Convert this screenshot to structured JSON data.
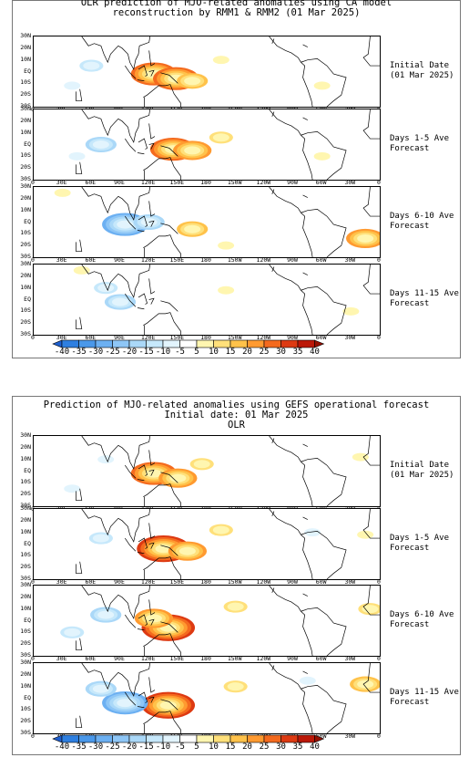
{
  "figures": [
    {
      "title_lines": [
        "OLR prediction of MJO-related anomalies using CA model",
        "reconstruction by RMM1 & RMM2 (01 Mar 2025)"
      ],
      "panels": [
        {
          "label": [
            "Initial Date",
            "(01 Mar 2025)"
          ]
        },
        {
          "label": [
            "Days 1-5 Ave",
            "Forecast"
          ]
        },
        {
          "label": [
            "Days 6-10 Ave",
            "Forecast"
          ]
        },
        {
          "label": [
            "Days 11-15 Ave",
            "Forecast"
          ]
        }
      ]
    },
    {
      "title_lines": [
        "Prediction of MJO-related anomalies using GEFS operational forecast",
        "Initial date: 01 Mar 2025",
        "OLR"
      ],
      "panels": [
        {
          "label": [
            "Initial Date",
            "(01 Mar 2025)"
          ]
        },
        {
          "label": [
            "Days 1-5 Ave",
            "Forecast"
          ]
        },
        {
          "label": [
            "Days 6-10 Ave",
            "Forecast"
          ]
        },
        {
          "label": [
            "Days 11-15 Ave",
            "Forecast"
          ]
        }
      ]
    }
  ],
  "chart_data": {
    "type": "heatmap",
    "variable": "OLR",
    "lat_ticks": [
      "30N",
      "20N",
      "10N",
      "EQ",
      "10S",
      "20S",
      "30S"
    ],
    "lon_ticks": [
      "0",
      "30E",
      "60E",
      "90E",
      "120E",
      "150E",
      "180",
      "150W",
      "120W",
      "90W",
      "60W",
      "30W",
      "0"
    ],
    "lat_range": [
      -30,
      30
    ],
    "lon_range": [
      0,
      360
    ],
    "colorbar": {
      "ticks": [
        "-40",
        "-35",
        "-30",
        "-25",
        "-20",
        "-15",
        "-10",
        "-5",
        "5",
        "10",
        "15",
        "20",
        "25",
        "30",
        "35",
        "40"
      ],
      "colors": [
        "#1e5fcf",
        "#2e7fe0",
        "#4a98ea",
        "#6cb0f2",
        "#8ec6f6",
        "#aad8f8",
        "#c6e8fb",
        "#e2f4fd",
        "#ffffff",
        "#fff6b0",
        "#ffe07a",
        "#ffc24a",
        "#ff9a30",
        "#f46a1e",
        "#dd3a12",
        "#bb1808",
        "#951000"
      ]
    },
    "panels": [
      {
        "figure": 1,
        "name": "Initial Date",
        "anomalies": [
          {
            "lon": 125,
            "lat": -2,
            "value": 25
          },
          {
            "lon": 148,
            "lat": -6,
            "value": 25
          },
          {
            "lon": 165,
            "lat": -8,
            "value": 15
          },
          {
            "lon": 60,
            "lat": 5,
            "value": -10
          },
          {
            "lon": 40,
            "lat": -12,
            "value": -5
          },
          {
            "lon": 300,
            "lat": -12,
            "value": 5
          },
          {
            "lon": 195,
            "lat": 10,
            "value": 5
          }
        ]
      },
      {
        "figure": 1,
        "name": "Days 1-5 Ave",
        "anomalies": [
          {
            "lon": 145,
            "lat": -4,
            "value": 25
          },
          {
            "lon": 165,
            "lat": -5,
            "value": 20
          },
          {
            "lon": 195,
            "lat": 6,
            "value": 10
          },
          {
            "lon": 70,
            "lat": 0,
            "value": -15
          },
          {
            "lon": 45,
            "lat": -10,
            "value": -5
          },
          {
            "lon": 300,
            "lat": -10,
            "value": 5
          }
        ]
      },
      {
        "figure": 1,
        "name": "Days 6-10 Ave",
        "anomalies": [
          {
            "lon": 95,
            "lat": -2,
            "value": -25
          },
          {
            "lon": 120,
            "lat": 0,
            "value": -15
          },
          {
            "lon": 165,
            "lat": -6,
            "value": 15
          },
          {
            "lon": 200,
            "lat": -20,
            "value": 5
          },
          {
            "lon": 345,
            "lat": -14,
            "value": 20
          },
          {
            "lon": 30,
            "lat": 25,
            "value": 5
          }
        ]
      },
      {
        "figure": 1,
        "name": "Days 11-15 Ave",
        "anomalies": [
          {
            "lon": 90,
            "lat": -2,
            "value": -15
          },
          {
            "lon": 75,
            "lat": 10,
            "value": -10
          },
          {
            "lon": 200,
            "lat": 8,
            "value": 5
          },
          {
            "lon": 330,
            "lat": -10,
            "value": 5
          },
          {
            "lon": 50,
            "lat": 25,
            "value": 5
          }
        ]
      },
      {
        "figure": 2,
        "name": "Initial Date",
        "anomalies": [
          {
            "lon": 125,
            "lat": -2,
            "value": 25
          },
          {
            "lon": 150,
            "lat": -6,
            "value": 20
          },
          {
            "lon": 175,
            "lat": 6,
            "value": 10
          },
          {
            "lon": 75,
            "lat": 10,
            "value": -5
          },
          {
            "lon": 40,
            "lat": -15,
            "value": -5
          },
          {
            "lon": 340,
            "lat": 12,
            "value": 5
          }
        ]
      },
      {
        "figure": 2,
        "name": "Days 1-5 Ave",
        "anomalies": [
          {
            "lon": 135,
            "lat": -4,
            "value": 30
          },
          {
            "lon": 160,
            "lat": -6,
            "value": 20
          },
          {
            "lon": 195,
            "lat": 12,
            "value": 10
          },
          {
            "lon": 70,
            "lat": 5,
            "value": -10
          },
          {
            "lon": 290,
            "lat": 10,
            "value": -5
          },
          {
            "lon": 345,
            "lat": 8,
            "value": 5
          }
        ]
      },
      {
        "figure": 2,
        "name": "Days 6-10 Ave",
        "anomalies": [
          {
            "lon": 140,
            "lat": -6,
            "value": 30
          },
          {
            "lon": 125,
            "lat": 2,
            "value": 20
          },
          {
            "lon": 210,
            "lat": 12,
            "value": 10
          },
          {
            "lon": 75,
            "lat": 5,
            "value": -15
          },
          {
            "lon": 40,
            "lat": -10,
            "value": -10
          },
          {
            "lon": 350,
            "lat": 10,
            "value": 10
          }
        ]
      },
      {
        "figure": 2,
        "name": "Days 11-15 Ave",
        "anomalies": [
          {
            "lon": 140,
            "lat": -6,
            "value": 30
          },
          {
            "lon": 95,
            "lat": -4,
            "value": -25
          },
          {
            "lon": 70,
            "lat": 8,
            "value": -15
          },
          {
            "lon": 210,
            "lat": 10,
            "value": 10
          },
          {
            "lon": 345,
            "lat": 12,
            "value": 15
          },
          {
            "lon": 285,
            "lat": 15,
            "value": -5
          }
        ]
      }
    ]
  }
}
